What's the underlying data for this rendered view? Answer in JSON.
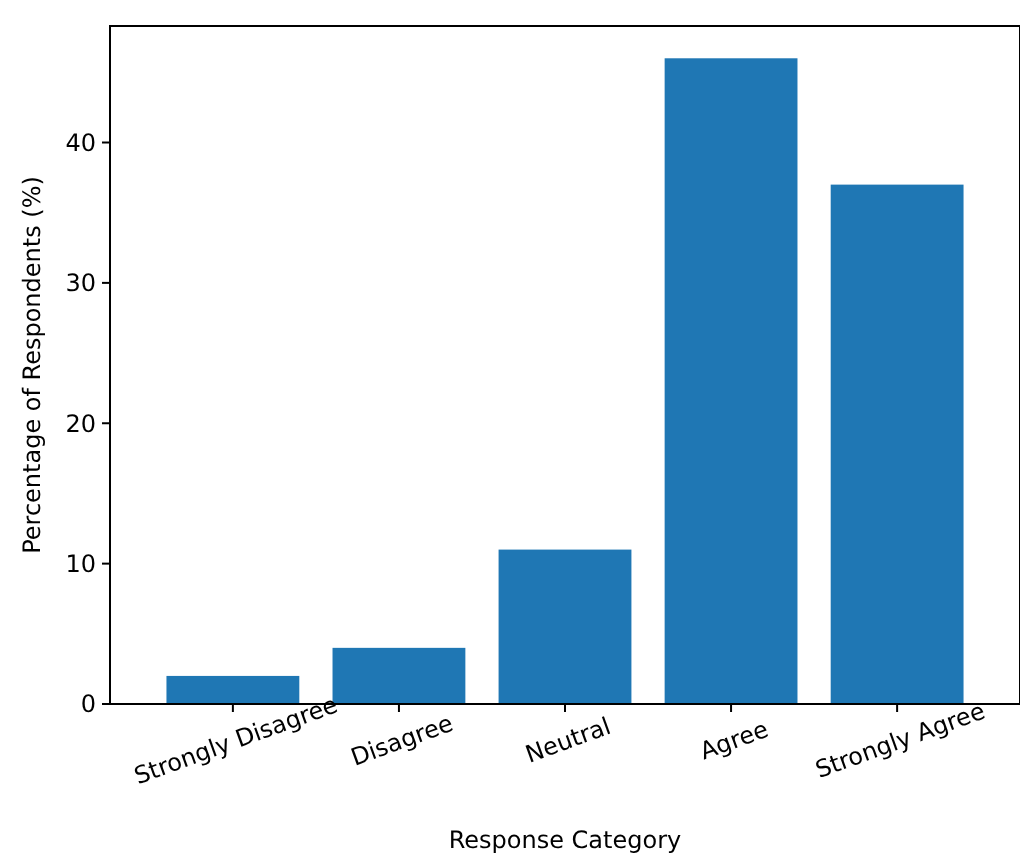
{
  "chart_data": {
    "type": "bar",
    "xlabel": "Response Category",
    "ylabel": "Percentage of Respondents (%)",
    "categories": [
      "Strongly Disagree",
      "Disagree",
      "Neutral",
      "Agree",
      "Strongly Agree"
    ],
    "values": [
      2,
      4,
      11,
      46,
      37
    ],
    "color": "#1f77b4",
    "ylim": [
      0,
      48.3
    ],
    "yticks": [
      0,
      10,
      20,
      30,
      40
    ],
    "grid": false
  }
}
